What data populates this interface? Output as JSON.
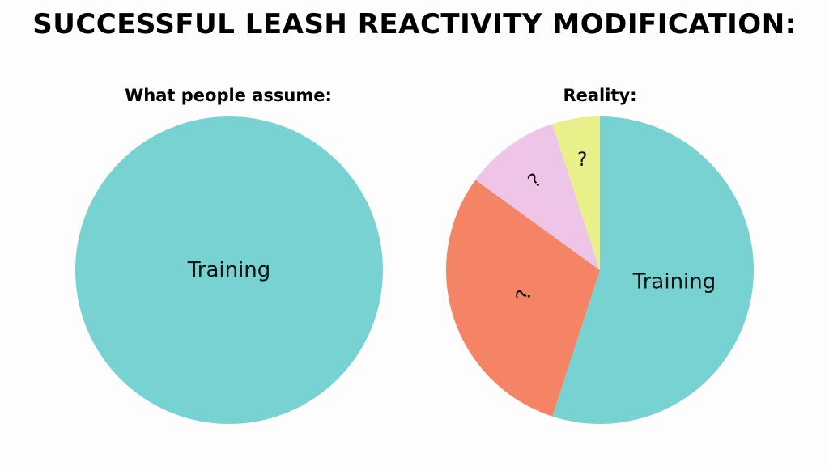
{
  "title": "SUCCESSFUL LEASH REACTIVITY MODIFICATION:",
  "chart_data": [
    {
      "type": "pie",
      "title": "What people assume:",
      "slices": [
        {
          "label": "Training",
          "value": 100,
          "color": "#78d2d2"
        }
      ]
    },
    {
      "type": "pie",
      "title": "Reality:",
      "slices": [
        {
          "label": "Training",
          "value": 55,
          "color": "#78d2d2"
        },
        {
          "label": "?",
          "value": 30,
          "color": "#f58466"
        },
        {
          "label": "?",
          "value": 10,
          "color": "#eec5e6"
        },
        {
          "label": "?",
          "value": 5,
          "color": "#eaf089"
        }
      ]
    }
  ]
}
